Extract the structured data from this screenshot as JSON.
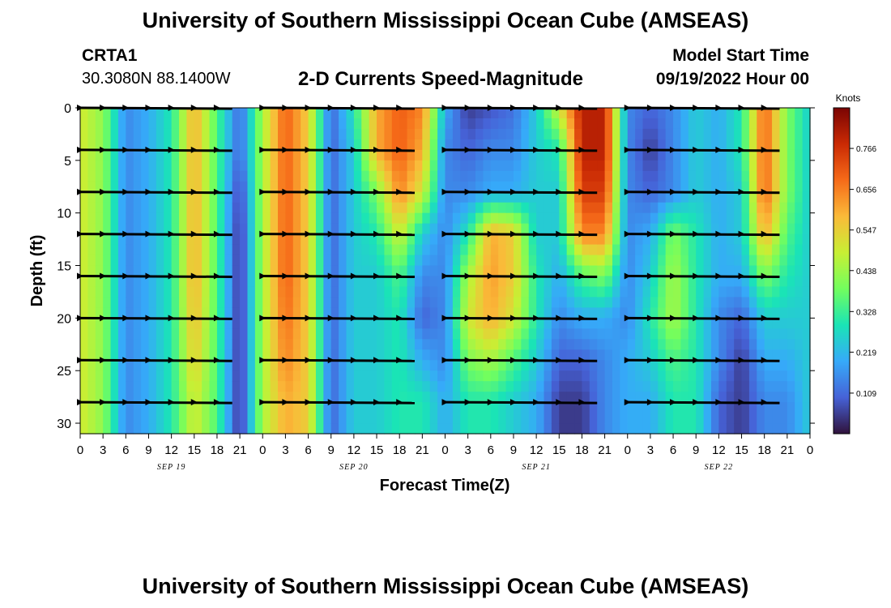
{
  "header": {
    "title": "University of Southern Mississippi Ocean Cube (AMSEAS)",
    "station": "CRTA1",
    "coords": "30.3080N  88.1400W",
    "subtitle": "2-D Currents Speed-Magnitude",
    "model_start_label": "Model Start Time",
    "model_start_value": "09/19/2022 Hour 00"
  },
  "footer": {
    "title": "University of Southern Mississippi Ocean Cube (AMSEAS)"
  },
  "chart_data": {
    "type": "heatmap",
    "title": "2-D Currents Speed-Magnitude",
    "xlabel": "Forecast Time(Z)",
    "ylabel": "Depth (ft)",
    "x_range": [
      0,
      96
    ],
    "y_range": [
      0,
      31
    ],
    "x_tick_labels": [
      "0",
      "3",
      "6",
      "9",
      "12",
      "15",
      "18",
      "21",
      "0",
      "3",
      "6",
      "9",
      "12",
      "15",
      "18",
      "21",
      "0",
      "3",
      "6",
      "9",
      "12",
      "15",
      "18",
      "21",
      "0",
      "3",
      "6",
      "9",
      "12",
      "15",
      "18",
      "21",
      "0"
    ],
    "date_labels": [
      {
        "label": "SEP 19",
        "hour": 12
      },
      {
        "label": "SEP 20",
        "hour": 36
      },
      {
        "label": "SEP 21",
        "hour": 60
      },
      {
        "label": "SEP 22",
        "hour": 84
      }
    ],
    "y_ticks": [
      0,
      5,
      10,
      15,
      20,
      25,
      30
    ],
    "colorbar": {
      "label": "Knots",
      "range": [
        0,
        0.875
      ],
      "ticks": [
        "0.766",
        "0.656",
        "0.547",
        "0.438",
        "0.328",
        "0.219",
        "0.109"
      ],
      "tick_values": [
        0.766,
        0.656,
        0.547,
        0.438,
        0.328,
        0.219,
        0.109
      ],
      "colors": [
        "#30123b",
        "#4662d7",
        "#36aaf9",
        "#1ae4b6",
        "#72fe5e",
        "#c8ef34",
        "#faba39",
        "#f66b19",
        "#ca2a04",
        "#7a0403"
      ]
    },
    "speed_grid": {
      "hours": [
        0,
        3,
        6,
        9,
        12,
        15,
        18,
        21,
        24,
        27,
        30,
        33,
        36,
        39,
        42,
        45,
        48,
        51,
        54,
        57,
        60,
        63,
        66,
        69,
        72,
        75,
        78,
        81,
        84,
        87,
        90,
        93,
        96
      ],
      "depths": [
        0,
        4,
        8,
        12,
        16,
        20,
        24,
        28,
        31
      ],
      "values": [
        [
          0.5,
          0.5,
          0.5,
          0.5,
          0.5,
          0.5,
          0.5,
          0.5,
          0.5
        ],
        [
          0.42,
          0.42,
          0.42,
          0.42,
          0.42,
          0.42,
          0.42,
          0.42,
          0.42
        ],
        [
          0.15,
          0.15,
          0.15,
          0.15,
          0.15,
          0.15,
          0.15,
          0.15,
          0.15
        ],
        [
          0.2,
          0.2,
          0.2,
          0.2,
          0.2,
          0.2,
          0.2,
          0.2,
          0.2
        ],
        [
          0.3,
          0.3,
          0.3,
          0.3,
          0.3,
          0.3,
          0.3,
          0.3,
          0.3
        ],
        [
          0.6,
          0.6,
          0.6,
          0.6,
          0.6,
          0.58,
          0.55,
          0.5,
          0.5
        ],
        [
          0.35,
          0.35,
          0.35,
          0.35,
          0.35,
          0.35,
          0.35,
          0.35,
          0.35
        ],
        [
          0.1,
          0.1,
          0.05,
          0.03,
          0.03,
          0.03,
          0.03,
          0.03,
          0.03
        ],
        [
          0.45,
          0.45,
          0.45,
          0.45,
          0.45,
          0.45,
          0.45,
          0.45,
          0.45
        ],
        [
          0.7,
          0.7,
          0.7,
          0.7,
          0.7,
          0.68,
          0.65,
          0.6,
          0.6
        ],
        [
          0.55,
          0.55,
          0.55,
          0.55,
          0.55,
          0.55,
          0.55,
          0.55,
          0.55
        ],
        [
          0.1,
          0.1,
          0.1,
          0.1,
          0.1,
          0.1,
          0.1,
          0.1,
          0.1
        ],
        [
          0.3,
          0.25,
          0.25,
          0.25,
          0.25,
          0.25,
          0.25,
          0.25,
          0.25
        ],
        [
          0.6,
          0.6,
          0.4,
          0.3,
          0.25,
          0.25,
          0.25,
          0.25,
          0.25
        ],
        [
          0.7,
          0.7,
          0.65,
          0.5,
          0.35,
          0.3,
          0.3,
          0.3,
          0.3
        ],
        [
          0.65,
          0.6,
          0.5,
          0.25,
          0.15,
          0.1,
          0.2,
          0.3,
          0.3
        ],
        [
          0.2,
          0.15,
          0.15,
          0.15,
          0.15,
          0.15,
          0.15,
          0.2,
          0.2
        ],
        [
          0.05,
          0.1,
          0.15,
          0.3,
          0.45,
          0.5,
          0.4,
          0.3,
          0.3
        ],
        [
          0.08,
          0.15,
          0.2,
          0.6,
          0.62,
          0.6,
          0.45,
          0.3,
          0.3
        ],
        [
          0.12,
          0.15,
          0.2,
          0.55,
          0.55,
          0.5,
          0.35,
          0.25,
          0.25
        ],
        [
          0.25,
          0.25,
          0.25,
          0.25,
          0.3,
          0.3,
          0.25,
          0.2,
          0.2
        ],
        [
          0.5,
          0.3,
          0.25,
          0.25,
          0.2,
          0.15,
          0.1,
          0.05,
          0.05
        ],
        [
          0.8,
          0.8,
          0.75,
          0.65,
          0.35,
          0.2,
          0.1,
          0.05,
          0.05
        ],
        [
          0.8,
          0.8,
          0.75,
          0.65,
          0.4,
          0.2,
          0.15,
          0.15,
          0.15
        ],
        [
          0.15,
          0.15,
          0.15,
          0.15,
          0.15,
          0.15,
          0.2,
          0.2,
          0.2
        ],
        [
          0.1,
          0.05,
          0.1,
          0.2,
          0.25,
          0.3,
          0.25,
          0.2,
          0.2
        ],
        [
          0.15,
          0.15,
          0.15,
          0.4,
          0.45,
          0.45,
          0.35,
          0.3,
          0.3
        ],
        [
          0.25,
          0.25,
          0.25,
          0.3,
          0.3,
          0.3,
          0.3,
          0.3,
          0.3
        ],
        [
          0.2,
          0.2,
          0.2,
          0.2,
          0.2,
          0.15,
          0.15,
          0.1,
          0.1
        ],
        [
          0.3,
          0.3,
          0.25,
          0.25,
          0.2,
          0.1,
          0.05,
          0.05,
          0.05
        ],
        [
          0.7,
          0.7,
          0.7,
          0.6,
          0.4,
          0.25,
          0.2,
          0.15,
          0.15
        ],
        [
          0.4,
          0.4,
          0.4,
          0.35,
          0.3,
          0.25,
          0.2,
          0.15,
          0.15
        ],
        [
          0.25,
          0.25,
          0.25,
          0.25,
          0.25,
          0.25,
          0.25,
          0.25,
          0.25
        ]
      ]
    },
    "vectors": {
      "depths": [
        0,
        4,
        8,
        12,
        16,
        20,
        24,
        28
      ],
      "hours": [
        0,
        3,
        6,
        9,
        12,
        15,
        18,
        21,
        24,
        27,
        30,
        33,
        36,
        39,
        42,
        45,
        48,
        51,
        54,
        57,
        60,
        63,
        66,
        69,
        72,
        75,
        78,
        81,
        84,
        87,
        90,
        93,
        96
      ],
      "gaps": [
        [
          21,
          21
        ],
        [
          45,
          45
        ],
        [
          69,
          69
        ],
        [
          93,
          93
        ]
      ]
    }
  }
}
